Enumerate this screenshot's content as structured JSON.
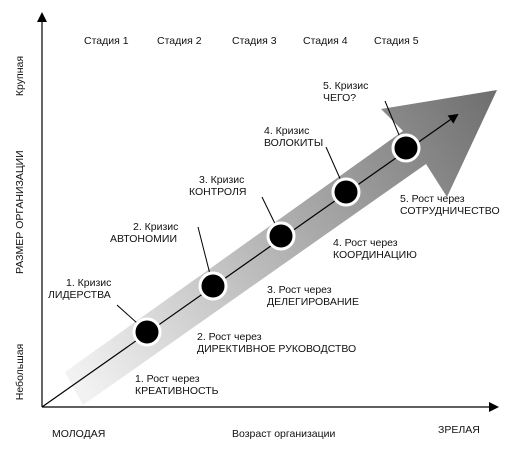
{
  "stages": [
    "Стадия 1",
    "Стадия 2",
    "Стадия 3",
    "Стадия 4",
    "Стадия 5"
  ],
  "y_axis": {
    "title": "РАЗМЕР ОРГАНИЗАЦИИ",
    "top": "Крупная",
    "bottom": "Небольшая"
  },
  "x_axis": {
    "title": "Возраст организации",
    "left": "МОЛОДАЯ",
    "right": "ЗРЕЛАЯ"
  },
  "crises": [
    {
      "line1": "1. Кризис",
      "line2": "ЛИДЕРСТВА"
    },
    {
      "line1": "2. Кризис",
      "line2": "АВТОНОМИИ"
    },
    {
      "line1": "3. Кризис",
      "line2": "КОНТРОЛЯ"
    },
    {
      "line1": "4. Кризис",
      "line2": "ВОЛОКИТЫ"
    },
    {
      "line1": "5. Кризис",
      "line2": "ЧЕГО?"
    }
  ],
  "growth": [
    {
      "line1": "1. Рост через",
      "line2": "КРЕАТИВНОСТЬ"
    },
    {
      "line1": "2. Рост через",
      "line2": "ДИРЕКТИВНОЕ РУКОВОДСТВО"
    },
    {
      "line1": "3. Рост через",
      "line2": "ДЕЛЕГИРОВАНИЕ"
    },
    {
      "line1": "4. Рост через",
      "line2": "КООРДИНАЦИЮ"
    },
    {
      "line1": "5. Рост через",
      "line2": "СОТРУДНИЧЕСТВО"
    }
  ],
  "colors": {
    "arrow_dark": "#707070",
    "arrow_light": "#f2f2f2",
    "dot": "#000000"
  }
}
